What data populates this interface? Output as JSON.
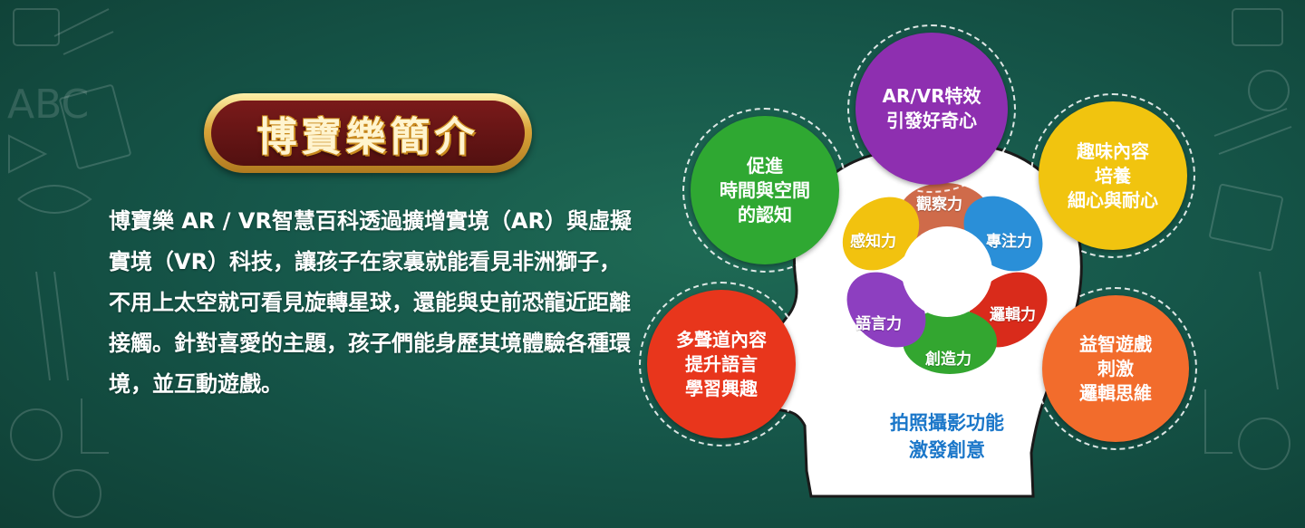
{
  "title": "博寶樂簡介",
  "intro": "博寶樂 AR / VR智慧百科透過擴增實境（AR）與虛擬實境（VR）科技，讓孩子在家裏就能看見非洲獅子，不用上太空就可看見旋轉星球，還能與史前恐龍近距離接觸。針對喜愛的主題，孩子們能身歷其境體驗各種環境，並互動遊戲。",
  "doodle_text": "ABC",
  "bubbles": {
    "time_space": "促進\n時間與空間\n的認知",
    "ar_vr": "AR/VR特效\n引發好奇心",
    "fun_content": "趣味內容\n培養\n細心與耐心",
    "audio": "多聲道內容\n提升語言\n學習興趣",
    "puzzle": "益智遊戲\n刺激\n邏輯思維"
  },
  "petals": {
    "observation": "觀察力",
    "focus": "專注力",
    "logic": "邏輯力",
    "creativity": "創造力",
    "language": "語言力",
    "perception": "感知力"
  },
  "photo_feature": "拍照攝影功能\n激發創意",
  "colors": {
    "background": "#16574a",
    "purple": "#8e2fb0",
    "green": "#2fa832",
    "yellow": "#f1c40f",
    "red": "#e8361c",
    "orange": "#f26c2c",
    "petal_brown": "#cf6b4a",
    "petal_blue": "#2a8fd8",
    "petal_red": "#d92b1b",
    "petal_green": "#33a630",
    "petal_purple": "#8d3fc0",
    "petal_yellow": "#f2c20f"
  }
}
